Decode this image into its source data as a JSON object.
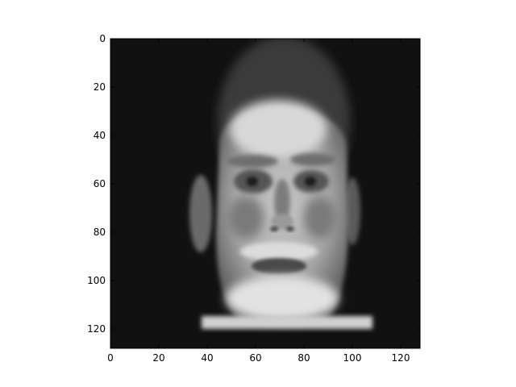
{
  "chart_data": {
    "type": "heatmap",
    "title": "",
    "xlabel": "",
    "ylabel": "",
    "colormap": "gray",
    "image_extent": {
      "x": [
        0,
        128
      ],
      "y": [
        128,
        0
      ]
    },
    "xlim": [
      0,
      128
    ],
    "ylim": [
      128,
      0
    ],
    "x_ticks": [
      0,
      20,
      40,
      60,
      80,
      100,
      120
    ],
    "x_tick_labels": [
      "0",
      "20",
      "40",
      "60",
      "80",
      "100",
      "120"
    ],
    "y_ticks": [
      0,
      20,
      40,
      60,
      80,
      100,
      120
    ],
    "y_tick_labels": [
      "0",
      "20",
      "40",
      "60",
      "80",
      "100",
      "120"
    ],
    "grid": false,
    "legend": "none",
    "background_color": "#111111",
    "subject": "grayscale face image"
  }
}
